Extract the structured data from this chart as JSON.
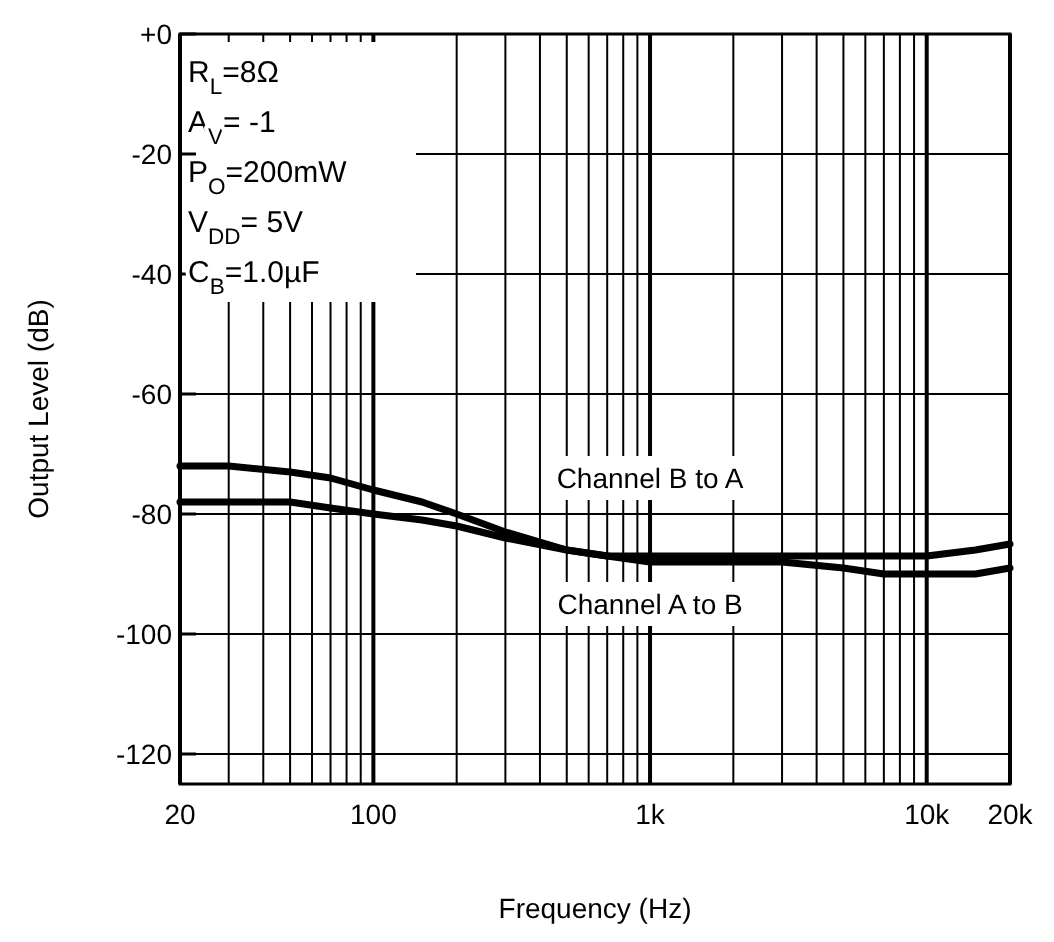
{
  "chart_data": {
    "type": "line",
    "xlabel": "Frequency (Hz)",
    "ylabel": "Output Level (dB)",
    "log": "x",
    "xlim": [
      20,
      20000
    ],
    "ylim": [
      -125,
      0
    ],
    "xticks": [
      20,
      {
        "value": 30,
        "label": null
      },
      {
        "value": 40,
        "label": null
      },
      {
        "value": 50,
        "label": null
      },
      {
        "value": 60,
        "label": null
      },
      {
        "value": 70,
        "label": null
      },
      {
        "value": 80,
        "label": null
      },
      {
        "value": 90,
        "label": null
      },
      100,
      {
        "value": 200,
        "label": null
      },
      {
        "value": 300,
        "label": null
      },
      {
        "value": 400,
        "label": null
      },
      {
        "value": 500,
        "label": null
      },
      {
        "value": 600,
        "label": null
      },
      {
        "value": 700,
        "label": null
      },
      {
        "value": 800,
        "label": null
      },
      {
        "value": 900,
        "label": null
      },
      {
        "value": 1000,
        "label": "1k"
      },
      {
        "value": 2000,
        "label": null
      },
      {
        "value": 3000,
        "label": null
      },
      {
        "value": 4000,
        "label": null
      },
      {
        "value": 5000,
        "label": null
      },
      {
        "value": 6000,
        "label": null
      },
      {
        "value": 7000,
        "label": null
      },
      {
        "value": 8000,
        "label": null
      },
      {
        "value": 9000,
        "label": null
      },
      {
        "value": 10000,
        "label": "10k"
      },
      {
        "value": 20000,
        "label": "20k"
      }
    ],
    "yticks": [
      {
        "value": 0,
        "label": "+0"
      },
      -20,
      -40,
      -60,
      -80,
      -100,
      -120
    ],
    "x": [
      20,
      30,
      50,
      70,
      100,
      150,
      200,
      300,
      500,
      700,
      1000,
      2000,
      3000,
      5000,
      7000,
      10000,
      15000,
      20000
    ],
    "series": [
      {
        "name": "Channel B to A",
        "color": "#000000",
        "values": [
          -72,
          -72,
          -73,
          -74,
          -76,
          -78,
          -80,
          -83,
          -86,
          -87,
          -87,
          -87,
          -87,
          -87,
          -87,
          -87,
          -86,
          -85
        ]
      },
      {
        "name": "Channel A to B",
        "color": "#000000",
        "values": [
          -78,
          -78,
          -78,
          -79,
          -80,
          -81,
          -82,
          -84,
          -86,
          -87,
          -88,
          -88,
          -88,
          -89,
          -90,
          -90,
          -90,
          -89
        ]
      }
    ],
    "grid": true,
    "line_style": "solid",
    "marker": "none",
    "annotations": [
      "R$_{L}$=8Ω",
      "A$_{V}$= -1",
      "P$_{O}$=200mW",
      "V$_{DD}$= 5V",
      "C$_{B}$=1.0µF"
    ]
  }
}
